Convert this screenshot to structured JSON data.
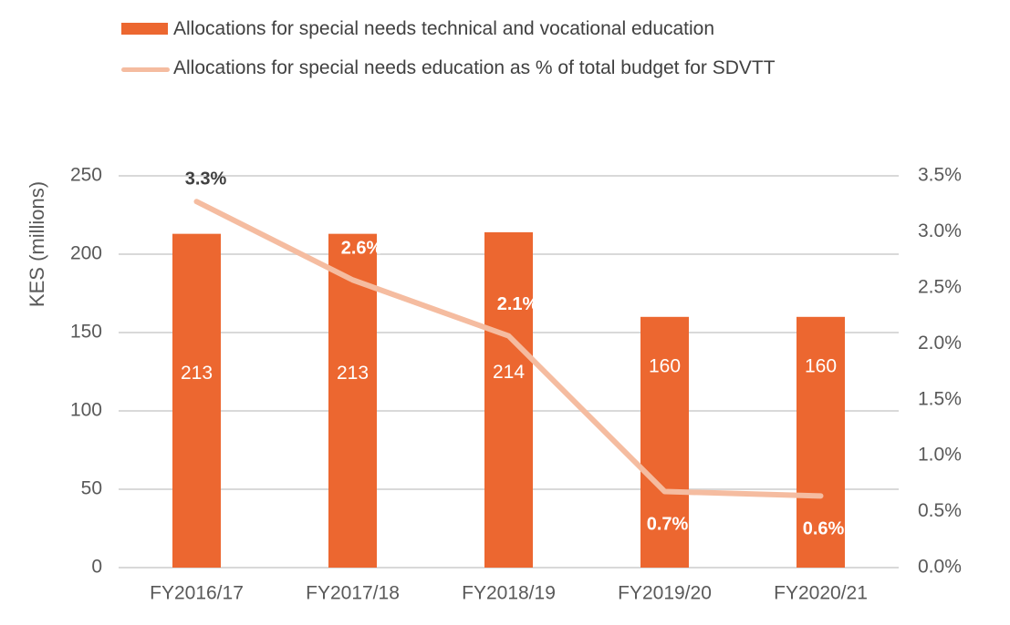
{
  "legend": {
    "bar_label": "Allocations for special needs technical and vocational education",
    "line_label": "Allocations for special needs education as % of total budget for SDVTT"
  },
  "colors": {
    "bar": "#EC6730",
    "line": "#F5BCA0",
    "grid": "#D9D9D9",
    "text": "#595959",
    "pct_dark": "#404040",
    "pct_light": "#FFFFFF"
  },
  "chart_data": {
    "type": "bar",
    "categories": [
      "FY2016/17",
      "FY2017/18",
      "FY2018/19",
      "FY2019/20",
      "FY2020/21"
    ],
    "series": [
      {
        "name": "Allocations for special needs technical and vocational education",
        "type": "bar",
        "axis": "left",
        "values": [
          213,
          213,
          214,
          160,
          160
        ],
        "data_labels": [
          "213",
          "213",
          "214",
          "160",
          "160"
        ]
      },
      {
        "name": "Allocations for special needs education as % of total budget for SDVTT",
        "type": "line",
        "axis": "right",
        "values": [
          3.27,
          2.57,
          2.07,
          0.68,
          0.64
        ],
        "data_labels": [
          "3.3%",
          "2.6%",
          "2.1%",
          "0.7%",
          "0.6%"
        ]
      }
    ],
    "ylabel": "KES (millions)",
    "ylim": [
      0,
      250
    ],
    "yticks": [
      "0",
      "50",
      "100",
      "150",
      "200",
      "250"
    ],
    "y2lim": [
      0,
      3.5
    ],
    "y2ticks": [
      "0.0%",
      "0.5%",
      "1.0%",
      "1.5%",
      "2.0%",
      "2.5%",
      "3.0%",
      "3.5%"
    ],
    "grid": true,
    "legend_position": "top-left"
  }
}
